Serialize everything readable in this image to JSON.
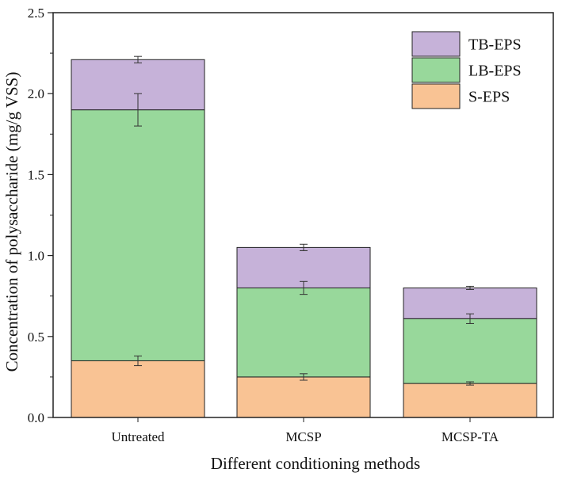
{
  "chart_data": {
    "type": "bar",
    "stacked": true,
    "title": "",
    "xlabel": "Different conditioning methods",
    "ylabel": "Concentration of polysaccharide (mg/g VSS)",
    "ylim": [
      0,
      2.5
    ],
    "yticks": [
      "0.0",
      "0.5",
      "1.0",
      "1.5",
      "2.0",
      "2.5"
    ],
    "categories": [
      "Untreated",
      "MCSP",
      "MCSP-TA"
    ],
    "legend_position": "top-right",
    "series": [
      {
        "name": "S-EPS",
        "color": "#f9c394",
        "values": [
          0.35,
          0.25,
          0.21
        ],
        "errors": [
          0.03,
          0.02,
          0.01
        ]
      },
      {
        "name": "LB-EPS",
        "color": "#98d89b",
        "values": [
          1.55,
          0.55,
          0.4
        ],
        "errors": [
          0.1,
          0.04,
          0.03
        ]
      },
      {
        "name": "TB-EPS",
        "color": "#c6b2d9",
        "values": [
          0.31,
          0.25,
          0.19
        ],
        "errors": [
          0.02,
          0.02,
          0.01
        ]
      }
    ]
  }
}
